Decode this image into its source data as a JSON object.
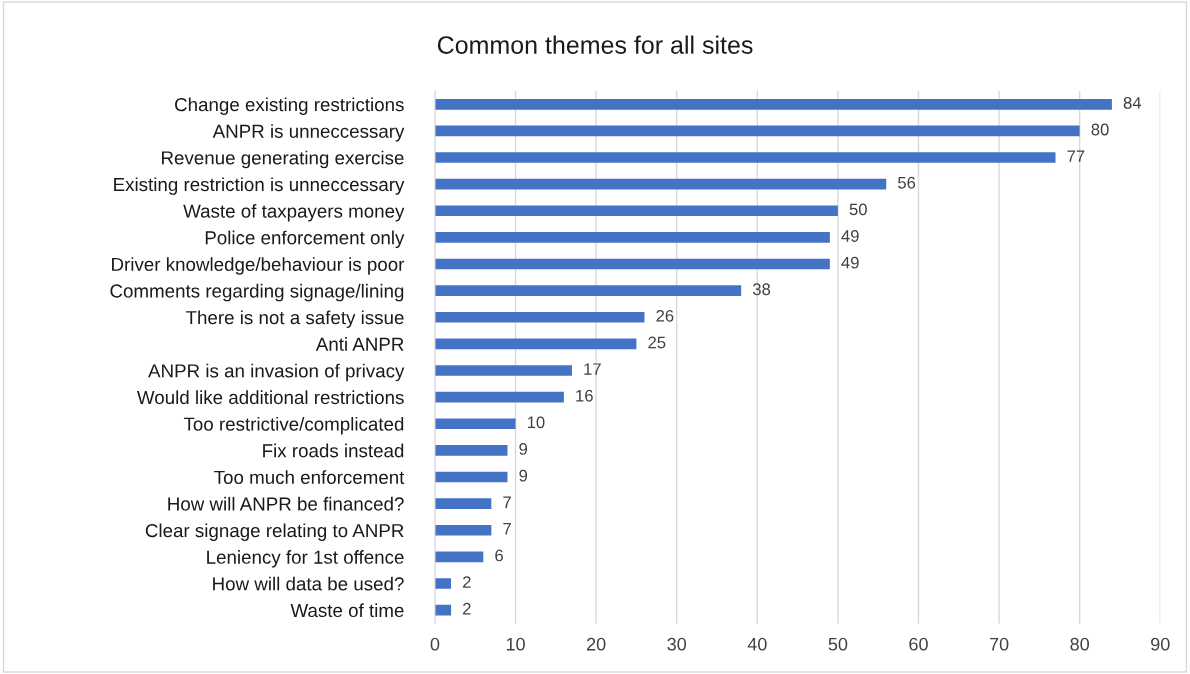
{
  "chart_data": {
    "type": "bar",
    "orientation": "horizontal",
    "title": "Common themes for all sites",
    "categories": [
      "Change existing restrictions",
      "ANPR is unneccessary",
      "Revenue generating exercise",
      "Existing restriction is unneccessary",
      "Waste of taxpayers money",
      "Police enforcement only",
      "Driver knowledge/behaviour is poor",
      "Comments regarding signage/lining",
      "There is not a safety issue",
      "Anti ANPR",
      "ANPR is an invasion of privacy",
      "Would like additional restrictions",
      "Too restrictive/complicated",
      "Fix roads instead",
      "Too much enforcement",
      "How will ANPR be financed?",
      "Clear signage relating to ANPR",
      "Leniency for 1st offence",
      "How will data be used?",
      "Waste of time"
    ],
    "values": [
      84,
      80,
      77,
      56,
      50,
      49,
      49,
      38,
      26,
      25,
      17,
      16,
      10,
      9,
      9,
      7,
      7,
      6,
      2,
      2
    ],
    "color": "#4472c4",
    "xlim": [
      0,
      90
    ],
    "xticks": [
      0,
      10,
      20,
      30,
      40,
      50,
      60,
      70,
      80,
      90
    ],
    "grid": "x",
    "data_labels": true,
    "legend": false
  }
}
